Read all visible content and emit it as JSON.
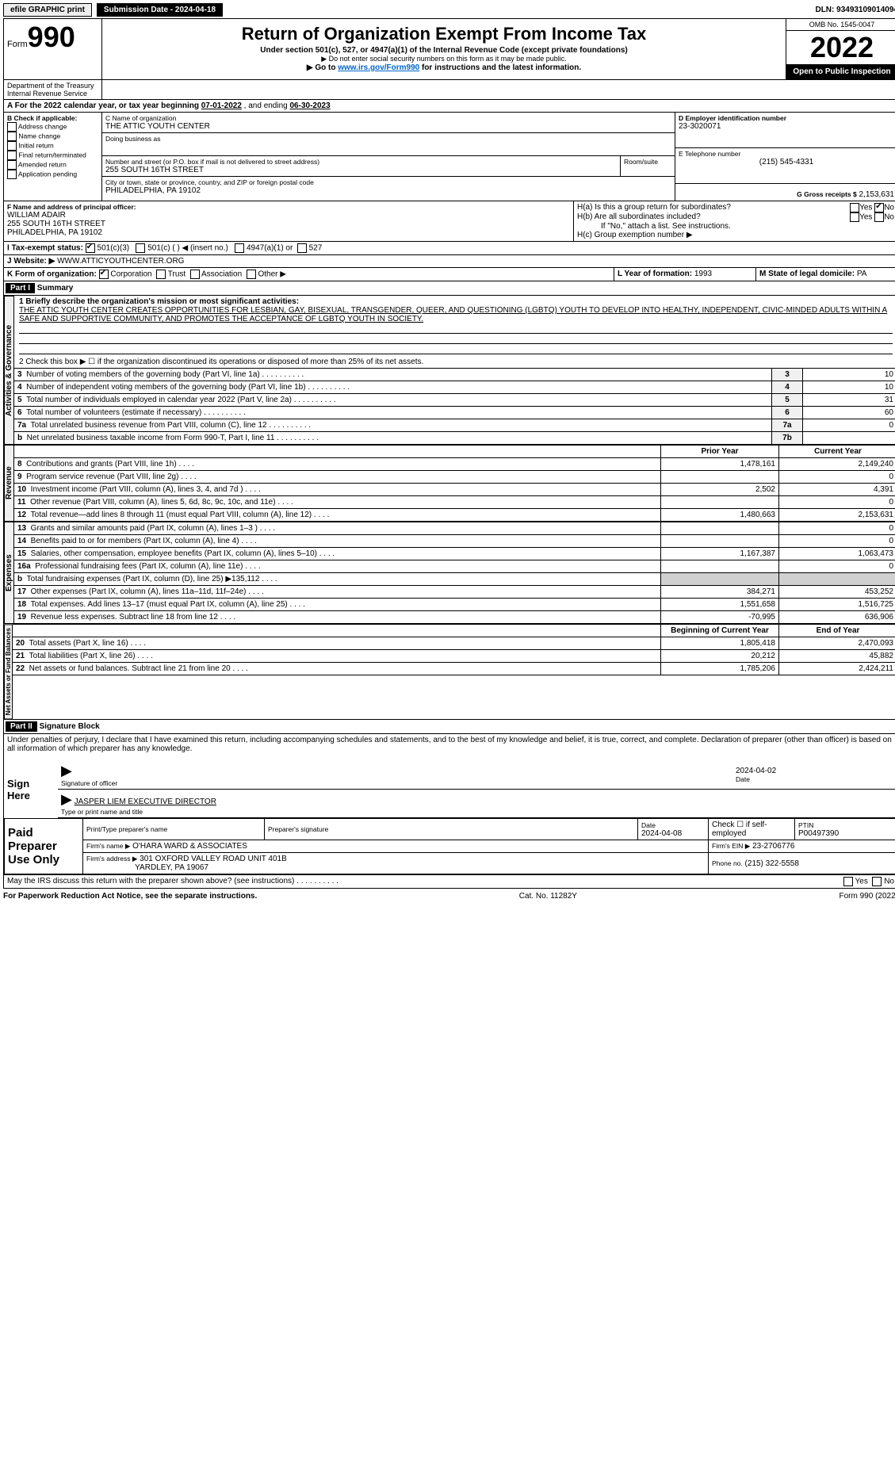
{
  "top": {
    "efile": "efile GRAPHIC print",
    "submission_label": "Submission Date - 2024-04-18",
    "dln": "DLN: 93493109014094"
  },
  "header": {
    "form_prefix": "Form",
    "form_number": "990",
    "title": "Return of Organization Exempt From Income Tax",
    "subtitle": "Under section 501(c), 527, or 4947(a)(1) of the Internal Revenue Code (except private foundations)",
    "note1": "▶ Do not enter social security numbers on this form as it may be made public.",
    "note2_prefix": "▶ Go to ",
    "note2_link": "www.irs.gov/Form990",
    "note2_suffix": " for instructions and the latest information.",
    "omb": "OMB No. 1545-0047",
    "year": "2022",
    "open_public": "Open to Public Inspection",
    "dept": "Department of the Treasury Internal Revenue Service"
  },
  "lineA": {
    "prefix": "A For the 2022 calendar year, or tax year beginning ",
    "begin": "07-01-2022",
    "mid": " , and ending ",
    "end": "06-30-2023"
  },
  "boxB": {
    "label": "B Check if applicable:",
    "opts": [
      "Address change",
      "Name change",
      "Initial return",
      "Final return/terminated",
      "Amended return",
      "Application pending"
    ]
  },
  "boxC": {
    "label": "C Name of organization",
    "name": "THE ATTIC YOUTH CENTER",
    "dba_label": "Doing business as",
    "street_label": "Number and street (or P.O. box if mail is not delivered to street address)",
    "room_label": "Room/suite",
    "street": "255 SOUTH 16TH STREET",
    "city_label": "City or town, state or province, country, and ZIP or foreign postal code",
    "city": "PHILADELPHIA, PA  19102"
  },
  "boxD": {
    "label": "D Employer identification number",
    "value": "23-3020071"
  },
  "boxE": {
    "label": "E Telephone number",
    "value": "(215) 545-4331"
  },
  "boxG": {
    "label": "G Gross receipts $",
    "value": "2,153,631"
  },
  "boxF": {
    "label": "F Name and address of principal officer:",
    "name": "WILLIAM ADAIR",
    "street": "255 SOUTH 16TH STREET",
    "city": "PHILADELPHIA, PA  19102"
  },
  "boxH": {
    "ha": "H(a)  Is this a group return for subordinates?",
    "hb": "H(b)  Are all subordinates included?",
    "hb_note": "If \"No,\" attach a list. See instructions.",
    "hc": "H(c)  Group exemption number ▶",
    "yes": "Yes",
    "no": "No"
  },
  "boxI": {
    "label": "I  Tax-exempt status:",
    "opt1": "501(c)(3)",
    "opt2": "501(c) (   ) ◀ (insert no.)",
    "opt3": "4947(a)(1) or",
    "opt4": "527"
  },
  "boxJ": {
    "label": "J  Website: ▶",
    "value": "WWW.ATTICYOUTHCENTER.ORG"
  },
  "boxK": {
    "label": "K Form of organization:",
    "opts": [
      "Corporation",
      "Trust",
      "Association",
      "Other ▶"
    ]
  },
  "boxL": {
    "label": "L Year of formation:",
    "value": "1993"
  },
  "boxM": {
    "label": "M State of legal domicile:",
    "value": "PA"
  },
  "part1": {
    "label": "Part I",
    "title": "Summary",
    "line1_label": "1  Briefly describe the organization's mission or most significant activities:",
    "line1_text": "THE ATTIC YOUTH CENTER CREATES OPPORTUNITIES FOR LESBIAN, GAY, BISEXUAL, TRANSGENDER, QUEER, AND QUESTIONING (LGBTQ) YOUTH TO DEVELOP INTO HEALTHY, INDEPENDENT, CIVIC-MINDED ADULTS WITHIN A SAFE AND SUPPORTIVE COMMUNITY, AND PROMOTES THE ACCEPTANCE OF LGBTQ YOUTH IN SOCIETY.",
    "line2": "2  Check this box ▶ ☐ if the organization discontinued its operations or disposed of more than 25% of its net assets.",
    "vert_activities": "Activities & Governance",
    "vert_revenue": "Revenue",
    "vert_expenses": "Expenses",
    "vert_netassets": "Net Assets or Fund Balances",
    "rows_ag": [
      {
        "n": "3",
        "label": "Number of voting members of the governing body (Part VI, line 1a)",
        "box": "3",
        "val": "10"
      },
      {
        "n": "4",
        "label": "Number of independent voting members of the governing body (Part VI, line 1b)",
        "box": "4",
        "val": "10"
      },
      {
        "n": "5",
        "label": "Total number of individuals employed in calendar year 2022 (Part V, line 2a)",
        "box": "5",
        "val": "31"
      },
      {
        "n": "6",
        "label": "Total number of volunteers (estimate if necessary)",
        "box": "6",
        "val": "60"
      },
      {
        "n": "7a",
        "label": "Total unrelated business revenue from Part VIII, column (C), line 12",
        "box": "7a",
        "val": "0"
      },
      {
        "n": "b",
        "label": "Net unrelated business taxable income from Form 990-T, Part I, line 11",
        "box": "7b",
        "val": ""
      }
    ],
    "col_prior": "Prior Year",
    "col_current": "Current Year",
    "rows_rev": [
      {
        "n": "8",
        "label": "Contributions and grants (Part VIII, line 1h)",
        "prior": "1,478,161",
        "curr": "2,149,240"
      },
      {
        "n": "9",
        "label": "Program service revenue (Part VIII, line 2g)",
        "prior": "",
        "curr": "0"
      },
      {
        "n": "10",
        "label": "Investment income (Part VIII, column (A), lines 3, 4, and 7d )",
        "prior": "2,502",
        "curr": "4,391"
      },
      {
        "n": "11",
        "label": "Other revenue (Part VIII, column (A), lines 5, 6d, 8c, 9c, 10c, and 11e)",
        "prior": "",
        "curr": "0"
      },
      {
        "n": "12",
        "label": "Total revenue—add lines 8 through 11 (must equal Part VIII, column (A), line 12)",
        "prior": "1,480,663",
        "curr": "2,153,631"
      }
    ],
    "rows_exp": [
      {
        "n": "13",
        "label": "Grants and similar amounts paid (Part IX, column (A), lines 1–3 )",
        "prior": "",
        "curr": "0"
      },
      {
        "n": "14",
        "label": "Benefits paid to or for members (Part IX, column (A), line 4)",
        "prior": "",
        "curr": "0"
      },
      {
        "n": "15",
        "label": "Salaries, other compensation, employee benefits (Part IX, column (A), lines 5–10)",
        "prior": "1,167,387",
        "curr": "1,063,473"
      },
      {
        "n": "16a",
        "label": "Professional fundraising fees (Part IX, column (A), line 11e)",
        "prior": "",
        "curr": "0"
      },
      {
        "n": "b",
        "label": "Total fundraising expenses (Part IX, column (D), line 25) ▶135,112",
        "prior": "GREY",
        "curr": "GREY"
      },
      {
        "n": "17",
        "label": "Other expenses (Part IX, column (A), lines 11a–11d, 11f–24e)",
        "prior": "384,271",
        "curr": "453,252"
      },
      {
        "n": "18",
        "label": "Total expenses. Add lines 13–17 (must equal Part IX, column (A), line 25)",
        "prior": "1,551,658",
        "curr": "1,516,725"
      },
      {
        "n": "19",
        "label": "Revenue less expenses. Subtract line 18 from line 12",
        "prior": "-70,995",
        "curr": "636,906"
      }
    ],
    "col_begin": "Beginning of Current Year",
    "col_end": "End of Year",
    "rows_na": [
      {
        "n": "20",
        "label": "Total assets (Part X, line 16)",
        "prior": "1,805,418",
        "curr": "2,470,093"
      },
      {
        "n": "21",
        "label": "Total liabilities (Part X, line 26)",
        "prior": "20,212",
        "curr": "45,882"
      },
      {
        "n": "22",
        "label": "Net assets or fund balances. Subtract line 21 from line 20",
        "prior": "1,785,206",
        "curr": "2,424,211"
      }
    ]
  },
  "part2": {
    "label": "Part II",
    "title": "Signature Block",
    "penalty": "Under penalties of perjury, I declare that I have examined this return, including accompanying schedules and statements, and to the best of my knowledge and belief, it is true, correct, and complete. Declaration of preparer (other than officer) is based on all information of which preparer has any knowledge.",
    "sign_here": "Sign Here",
    "sig_officer": "Signature of officer",
    "date": "Date",
    "sig_date": "2024-04-02",
    "officer_name": "JASPER LIEM  EXECUTIVE DIRECTOR",
    "type_name": "Type or print name and title",
    "paid": "Paid Preparer Use Only",
    "prep_name_label": "Print/Type preparer's name",
    "prep_sig_label": "Preparer's signature",
    "prep_date_label": "Date",
    "prep_date": "2024-04-08",
    "check_if": "Check ☐ if self-employed",
    "ptin_label": "PTIN",
    "ptin": "P00497390",
    "firm_name_label": "Firm's name    ▶",
    "firm_name": "O'HARA WARD & ASSOCIATES",
    "firm_ein_label": "Firm's EIN ▶",
    "firm_ein": "23-2706776",
    "firm_addr_label": "Firm's address ▶",
    "firm_addr": "301 OXFORD VALLEY ROAD UNIT 401B",
    "firm_city": "YARDLEY, PA  19067",
    "phone_label": "Phone no.",
    "phone": "(215) 322-5558",
    "discuss": "May the IRS discuss this return with the preparer shown above? (see instructions)",
    "yes": "Yes",
    "no": "No"
  },
  "footer": {
    "left": "For Paperwork Reduction Act Notice, see the separate instructions.",
    "mid": "Cat. No. 11282Y",
    "right": "Form 990 (2022)"
  }
}
